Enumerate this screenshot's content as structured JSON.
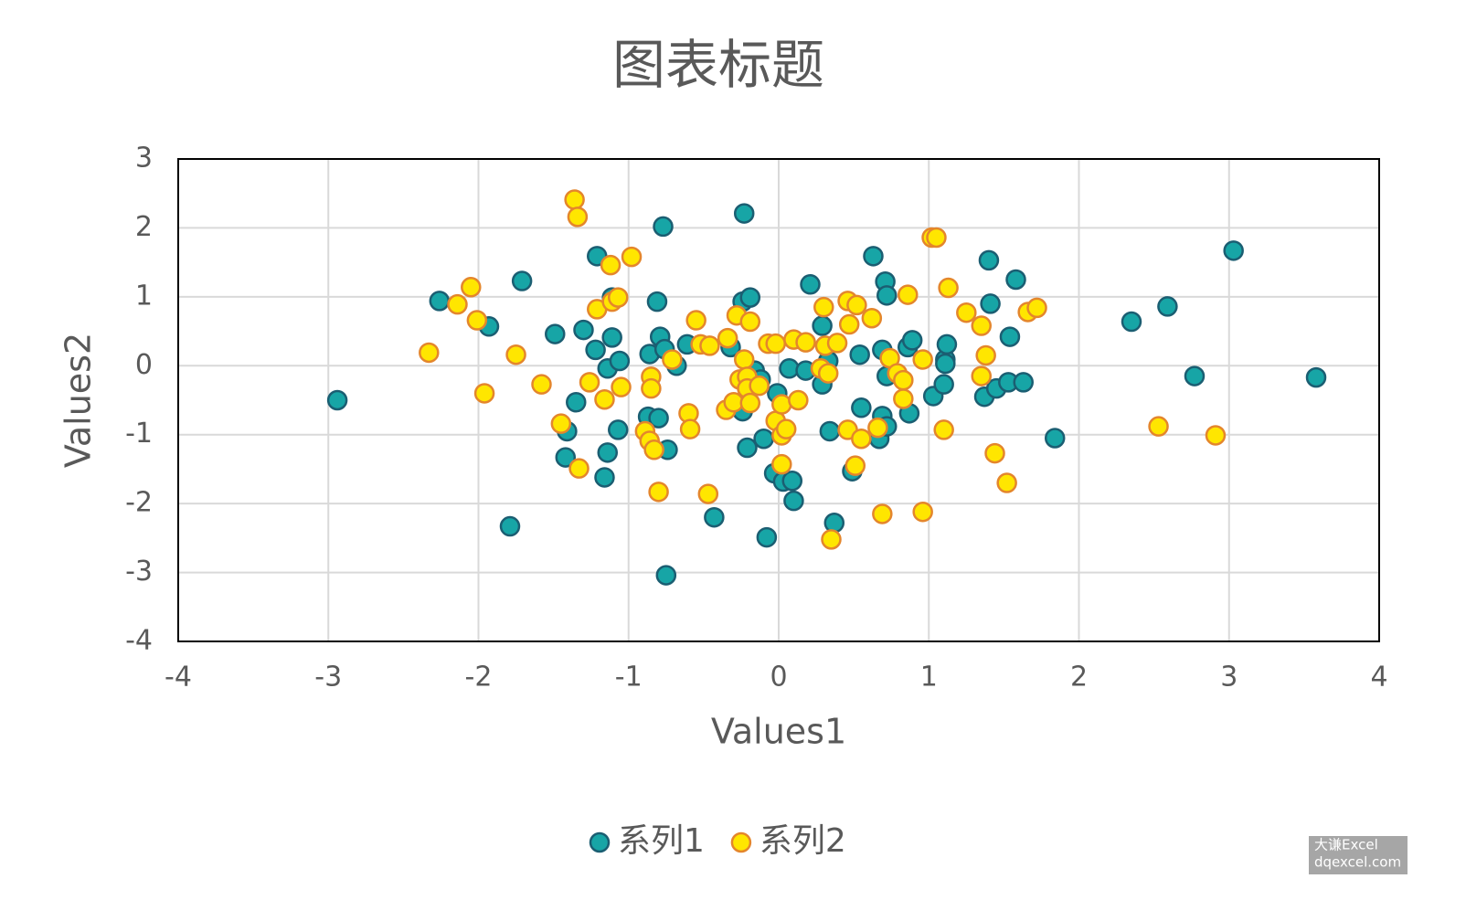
{
  "chart_data": {
    "type": "scatter",
    "title": "图表标题",
    "xlabel": "Values1",
    "ylabel": "Values2",
    "xlim": [
      -4,
      4
    ],
    "ylim": [
      -4,
      3
    ],
    "xticks": [
      -4,
      -3,
      -2,
      -1,
      0,
      1,
      2,
      3,
      4
    ],
    "yticks": [
      -4,
      -3,
      -2,
      -1,
      0,
      1,
      2,
      3
    ],
    "grid": true,
    "legend": "bottom",
    "watermark": [
      "大谦Excel",
      "dqexcel.com"
    ],
    "series": [
      {
        "name": "系列1",
        "color": "#17a5a6",
        "edgecolor": "#1b5e72",
        "x": [
          -2.94,
          -2.26,
          -1.93,
          -1.71,
          -1.79,
          -1.49,
          -1.41,
          -1.42,
          -1.35,
          -1.3,
          -1.21,
          -1.22,
          -1.14,
          -1.11,
          -1.14,
          -1.16,
          -1.07,
          -1.06,
          -1.11,
          -0.81,
          -0.77,
          -0.79,
          -0.86,
          -0.76,
          -0.87,
          -0.8,
          -0.74,
          -0.68,
          -0.61,
          -0.75,
          -0.43,
          -0.32,
          -0.24,
          -0.19,
          -0.23,
          -0.21,
          -0.24,
          -0.16,
          -0.12,
          -0.1,
          -0.08,
          -0.03,
          -0.01,
          0.03,
          0.09,
          0.1,
          0.07,
          0.18,
          0.21,
          0.29,
          0.29,
          0.33,
          0.34,
          0.37,
          0.49,
          0.54,
          0.55,
          0.63,
          0.69,
          0.71,
          0.72,
          0.72,
          0.69,
          0.67,
          0.72,
          0.86,
          0.89,
          0.87,
          1.03,
          1.11,
          1.12,
          1.11,
          1.1,
          1.37,
          1.41,
          1.4,
          1.45,
          1.53,
          1.54,
          1.58,
          1.63,
          1.84,
          2.35,
          2.59,
          2.77,
          3.03,
          3.58
        ],
        "y": [
          -0.5,
          0.94,
          0.57,
          1.23,
          -2.33,
          0.46,
          -0.95,
          -1.33,
          -0.53,
          0.52,
          1.59,
          0.23,
          -0.04,
          0.41,
          -1.26,
          -1.62,
          -0.93,
          0.07,
          0.99,
          0.93,
          2.02,
          0.42,
          0.17,
          0.24,
          -0.74,
          -0.76,
          -1.22,
          0.0,
          0.31,
          -3.04,
          -2.2,
          0.27,
          0.93,
          0.99,
          2.21,
          -1.19,
          -0.66,
          -0.07,
          -0.2,
          -1.06,
          -2.49,
          -1.56,
          -0.4,
          -1.68,
          -1.67,
          -1.96,
          -0.04,
          -0.07,
          1.18,
          0.58,
          -0.27,
          0.07,
          -0.95,
          -2.28,
          -1.53,
          0.16,
          -0.61,
          1.59,
          0.23,
          1.22,
          1.02,
          -0.15,
          -0.73,
          -1.06,
          -0.88,
          0.27,
          0.37,
          -0.69,
          -0.44,
          0.09,
          0.31,
          0.03,
          -0.27,
          -0.45,
          0.9,
          1.53,
          -0.33,
          -0.24,
          0.42,
          1.25,
          -0.24,
          -1.05,
          0.64,
          0.86,
          -0.15,
          1.67,
          -0.17
        ]
      },
      {
        "name": "系列2",
        "color": "#ffe600",
        "edgecolor": "#e4862c",
        "x": [
          -2.33,
          -2.14,
          -2.05,
          -2.01,
          -1.96,
          -1.75,
          -1.58,
          -1.45,
          -1.33,
          -1.36,
          -1.34,
          -1.26,
          -1.21,
          -1.16,
          -1.12,
          -1.11,
          -1.07,
          -1.05,
          -0.98,
          -0.89,
          -0.86,
          -0.83,
          -0.85,
          -0.85,
          -0.8,
          -0.71,
          -0.6,
          -0.59,
          -0.55,
          -0.52,
          -0.47,
          -0.46,
          -0.35,
          -0.34,
          -0.3,
          -0.28,
          -0.26,
          -0.23,
          -0.21,
          -0.21,
          -0.19,
          -0.19,
          -0.13,
          -0.07,
          -0.02,
          -0.02,
          0.02,
          0.02,
          0.02,
          0.05,
          0.1,
          0.13,
          0.18,
          0.28,
          0.3,
          0.31,
          0.33,
          0.35,
          0.39,
          0.46,
          0.46,
          0.47,
          0.52,
          0.51,
          0.55,
          0.62,
          0.66,
          0.69,
          0.74,
          0.79,
          0.83,
          0.83,
          0.86,
          0.96,
          0.96,
          1.02,
          1.05,
          1.1,
          1.13,
          1.25,
          1.35,
          1.35,
          1.38,
          1.44,
          1.52,
          1.66,
          1.72,
          2.53,
          2.91
        ],
        "y": [
          0.19,
          0.89,
          1.14,
          0.66,
          -0.4,
          0.16,
          -0.27,
          -0.84,
          -1.49,
          2.41,
          2.16,
          -0.24,
          0.82,
          -0.49,
          1.46,
          0.93,
          0.99,
          -0.31,
          1.58,
          -0.95,
          -1.09,
          -1.22,
          -0.16,
          -0.33,
          -1.83,
          0.09,
          -0.69,
          -0.92,
          0.66,
          0.31,
          -1.86,
          0.29,
          -0.64,
          0.4,
          -0.53,
          0.73,
          -0.2,
          0.09,
          -0.16,
          -0.33,
          0.64,
          -0.54,
          -0.29,
          0.32,
          0.32,
          -0.8,
          -0.56,
          -1.01,
          -1.43,
          -0.92,
          0.38,
          -0.5,
          0.34,
          -0.04,
          0.85,
          0.29,
          -0.11,
          -2.52,
          0.33,
          -0.93,
          0.94,
          0.6,
          0.88,
          -1.45,
          -1.06,
          0.69,
          -0.9,
          -2.15,
          0.11,
          -0.11,
          -0.21,
          -0.48,
          1.03,
          0.09,
          -2.12,
          1.86,
          1.86,
          -0.93,
          1.13,
          0.77,
          0.58,
          -0.15,
          0.15,
          -1.27,
          -1.7,
          0.78,
          0.84,
          -0.88,
          -1.01
        ]
      }
    ]
  }
}
